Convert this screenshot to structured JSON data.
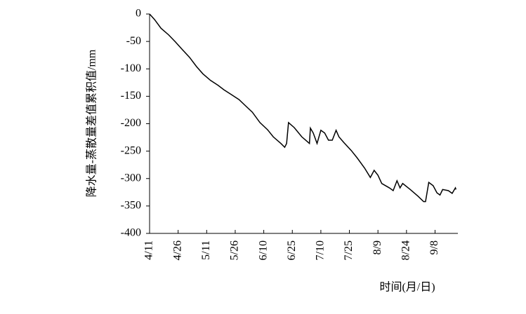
{
  "chart_data": {
    "type": "line",
    "x_label": "时间(月/日)",
    "y_label": "降水量-蒸散量差值累积值/mm",
    "x": [
      0,
      2.6,
      6,
      10,
      13.6,
      17,
      21,
      24.7,
      28,
      32,
      36,
      39,
      43,
      47,
      50,
      54,
      58,
      62,
      65,
      69,
      71,
      72,
      73,
      76,
      80,
      82,
      84,
      84.5,
      86,
      88,
      90,
      92,
      94,
      96,
      98,
      99.5,
      102,
      106,
      109,
      113,
      116,
      118,
      120,
      122,
      126,
      128,
      130,
      131.6,
      133,
      137,
      141,
      144,
      145,
      146.7,
      149,
      151,
      152.6,
      154,
      157,
      159,
      160.7,
      161
    ],
    "series": [
      {
        "color": "#000000",
        "values": [
          0,
          -10,
          -26,
          -38,
          -51,
          -64,
          -79,
          -96,
          -109,
          -121,
          -130,
          -138,
          -147,
          -156,
          -166,
          -179,
          -198,
          -211,
          -224,
          -236,
          -243,
          -236,
          -198,
          -207,
          -224,
          -230,
          -236,
          -208,
          -217,
          -236,
          -212,
          -217,
          -230,
          -230,
          -212,
          -224,
          -234,
          -249,
          -262,
          -281,
          -298,
          -285,
          -294,
          -309,
          -317,
          -322,
          -304,
          -317,
          -309,
          -320,
          -332,
          -342,
          -342,
          -307,
          -313,
          -326,
          -330,
          -320,
          -322,
          -327,
          -317,
          -320
        ]
      }
    ],
    "xlim": [
      0,
      162
    ],
    "xticks": [
      {
        "value": 0,
        "label": "4/11"
      },
      {
        "value": 15,
        "label": "4/26"
      },
      {
        "value": 30,
        "label": "5/11"
      },
      {
        "value": 45,
        "label": "5/26"
      },
      {
        "value": 60,
        "label": "6/10"
      },
      {
        "value": 75,
        "label": "6/25"
      },
      {
        "value": 90,
        "label": "7/10"
      },
      {
        "value": 105,
        "label": "7/25"
      },
      {
        "value": 120,
        "label": "8/9"
      },
      {
        "value": 135,
        "label": "8/24"
      },
      {
        "value": 150,
        "label": "9/8"
      }
    ],
    "ylim": [
      -400,
      0
    ],
    "yticks": [
      0,
      -50,
      -100,
      -150,
      -200,
      -250,
      -300,
      -350,
      -400
    ]
  }
}
